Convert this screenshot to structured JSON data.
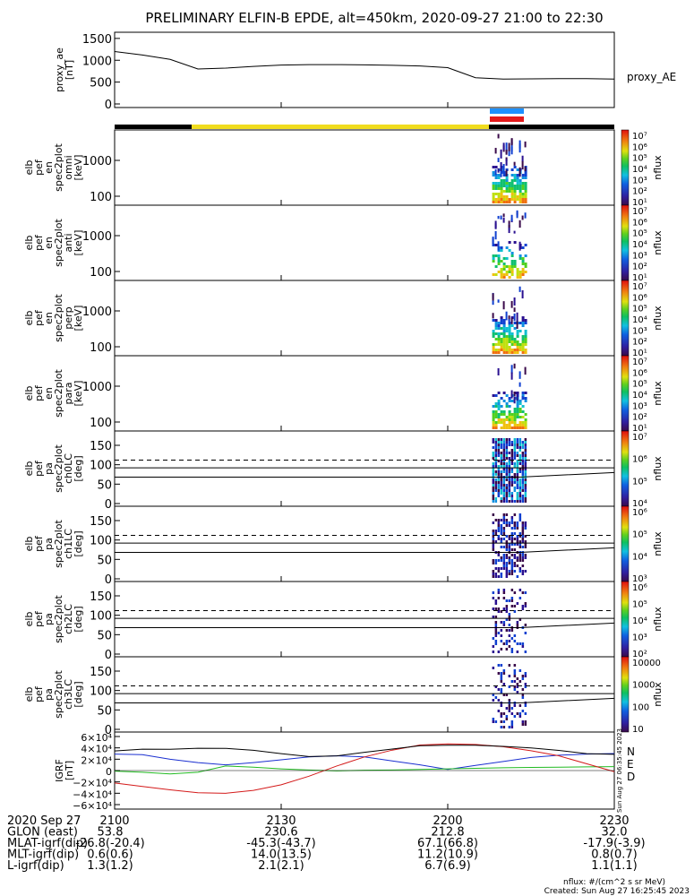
{
  "title": "PRELIMINARY ELFIN-B EPDE, alt=450km, 2020-09-27 21:00 to 22:30",
  "colors": {
    "state_bar_black": "#000000",
    "state_bar_yellow": "#f0dc1e",
    "marker_blue": "#1e90ff",
    "marker_red": "#e41a1c",
    "igrf_n": "#1a2fd0",
    "igrf_e": "#22bb22",
    "igrf_d": "#d41a1a"
  },
  "chart_data": [
    {
      "id": "proxy_ae",
      "type": "line",
      "ylabel": [
        "proxy_ae",
        "[nT]"
      ],
      "right_label": "proxy_AE",
      "ytick_labels": [
        "1500",
        "1000",
        "500",
        "0"
      ],
      "ylim": [
        0,
        1600
      ],
      "x_minutes": [
        0,
        5,
        10,
        15,
        20,
        25,
        30,
        35,
        40,
        45,
        50,
        55,
        60,
        65,
        70,
        75,
        80,
        85,
        90
      ],
      "values": [
        1200,
        1120,
        1020,
        800,
        820,
        860,
        890,
        900,
        900,
        895,
        885,
        870,
        830,
        600,
        570,
        575,
        580,
        580,
        570
      ]
    },
    {
      "id": "spec_omni",
      "type": "heatmap",
      "ylabel": [
        "elb",
        "pef",
        "en",
        "spec2plot",
        "omni",
        "[keV]"
      ],
      "ytick_labels": [
        "1000",
        "100"
      ],
      "colorbar_label": "nflux",
      "colorbar_ticks": [
        "10⁷",
        "10⁶",
        "10⁵",
        "10⁴",
        "10³",
        "10²",
        "10¹"
      ]
    },
    {
      "id": "spec_anti",
      "type": "heatmap",
      "ylabel": [
        "elb",
        "pef",
        "en",
        "spec2plot",
        "anti",
        "[keV]"
      ],
      "ytick_labels": [
        "1000",
        "100"
      ],
      "colorbar_label": "nflux",
      "colorbar_ticks": [
        "10⁷",
        "10⁶",
        "10⁵",
        "10⁴",
        "10³",
        "10²",
        "10¹"
      ]
    },
    {
      "id": "spec_perp",
      "type": "heatmap",
      "ylabel": [
        "elb",
        "pef",
        "en",
        "spec2plot",
        "perp",
        "[keV]"
      ],
      "ytick_labels": [
        "1000",
        "100"
      ],
      "colorbar_label": "nflux",
      "colorbar_ticks": [
        "10⁷",
        "10⁶",
        "10⁵",
        "10⁴",
        "10³",
        "10²",
        "10¹"
      ]
    },
    {
      "id": "spec_para",
      "type": "heatmap",
      "ylabel": [
        "elb",
        "pef",
        "en",
        "spec2plot",
        "para",
        "[keV]"
      ],
      "ytick_labels": [
        "1000",
        "100"
      ],
      "colorbar_label": "nflux",
      "colorbar_ticks": [
        "10⁷",
        "10⁶",
        "10⁵",
        "10⁴",
        "10³",
        "10²",
        "10¹"
      ]
    },
    {
      "id": "pa_ch0",
      "type": "heatmap",
      "ylabel": [
        "elb",
        "pef",
        "pa",
        "spec2plot",
        "ch0LC",
        "[deg]"
      ],
      "ytick_labels": [
        "150",
        "100",
        "50",
        "0"
      ],
      "colorbar_label": "nflux",
      "colorbar_ticks": [
        "10⁷",
        "10⁶",
        "10⁵",
        "10⁴"
      ]
    },
    {
      "id": "pa_ch1",
      "type": "heatmap",
      "ylabel": [
        "elb",
        "pef",
        "pa",
        "spec2plot",
        "ch1LC",
        "[deg]"
      ],
      "ytick_labels": [
        "150",
        "100",
        "50",
        "0"
      ],
      "colorbar_label": "nflux",
      "colorbar_ticks": [
        "10⁶",
        "10⁵",
        "10⁴",
        "10³"
      ]
    },
    {
      "id": "pa_ch2",
      "type": "heatmap",
      "ylabel": [
        "elb",
        "pef",
        "pa",
        "spec2plot",
        "ch2LC",
        "[deg]"
      ],
      "ytick_labels": [
        "150",
        "100",
        "50",
        "0"
      ],
      "colorbar_label": "nflux",
      "colorbar_ticks": [
        "10⁶",
        "10⁵",
        "10⁴",
        "10³",
        "10²"
      ]
    },
    {
      "id": "pa_ch3",
      "type": "heatmap",
      "ylabel": [
        "elb",
        "pef",
        "pa",
        "spec2plot",
        "ch3LC",
        "[deg]"
      ],
      "ytick_labels": [
        "150",
        "100",
        "50",
        "0"
      ],
      "colorbar_label": "nflux",
      "colorbar_ticks": [
        "10000",
        "1000",
        "100",
        "10"
      ]
    },
    {
      "id": "igrf",
      "type": "line",
      "ylabel": [
        "IGRF",
        "[nT]"
      ],
      "ytick_labels": [
        "6×10⁴",
        "4×10⁴",
        "2×10⁴",
        "0",
        "−2×10⁴",
        "−4×10⁴",
        "−6×10⁴"
      ],
      "ylim": [
        -60000,
        60000
      ],
      "side_stamp": "Sun Aug 27 06:35:45 2023",
      "x_minutes": [
        0,
        5,
        10,
        15,
        20,
        25,
        30,
        35,
        40,
        45,
        50,
        55,
        60,
        65,
        70,
        75,
        80,
        85,
        90
      ],
      "series": [
        {
          "name": "N",
          "values": [
            29000,
            28000,
            20000,
            14000,
            10000,
            14000,
            19000,
            24000,
            26000,
            24000,
            17000,
            10000,
            2000,
            9000,
            16000,
            23000,
            27000,
            29000,
            30000
          ]
        },
        {
          "name": "E",
          "values": [
            -1000,
            -3000,
            -6000,
            -3000,
            8000,
            6000,
            3000,
            1000,
            -500,
            500,
            1000,
            2000,
            3000,
            4000,
            5000,
            5500,
            6000,
            6500,
            7000
          ]
        },
        {
          "name": "D",
          "values": [
            -22000,
            -28000,
            -34000,
            -39000,
            -40000,
            -35000,
            -25000,
            -10000,
            8000,
            24000,
            36000,
            45000,
            47000,
            46000,
            42000,
            35000,
            26000,
            12000,
            -2000
          ]
        }
      ]
    }
  ],
  "footer": {
    "rows": [
      {
        "label": "2020 Sep 27",
        "values": [
          "2100",
          "2130",
          "2200",
          "2230"
        ]
      },
      {
        "label": "GLON (east)",
        "values": [
          "53.8",
          "230.6",
          "212.8",
          "32.0"
        ]
      },
      {
        "label": "MLAT-igrf(dip)",
        "values": [
          "-26.8(-20.4)",
          "-45.3(-43.7)",
          "67.1(66.8)",
          "-17.9(-3.9)"
        ]
      },
      {
        "label": "MLT-igrf(dip)",
        "values": [
          "0.6(0.6)",
          "14.0(13.5)",
          "11.2(10.9)",
          "0.8(0.7)"
        ]
      },
      {
        "label": "L-igrf(dip)",
        "values": [
          "1.3(1.2)",
          "2.1(2.1)",
          "6.7(6.9)",
          "1.1(1.1)"
        ]
      }
    ],
    "units_note": "nflux: #/(cm^2 s sr MeV)",
    "created": "Created: Sun Aug 27 16:25:45 2023"
  }
}
